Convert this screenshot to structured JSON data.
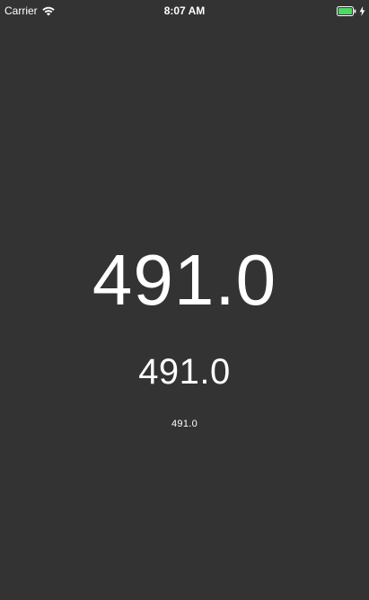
{
  "status_bar": {
    "carrier": "Carrier",
    "time": "8:07 AM",
    "wifi_icon": "wifi-icon",
    "battery_icon": "battery-icon",
    "charge_icon": "charging-bolt-icon",
    "battery_color": "#4cd964"
  },
  "display": {
    "large_value": "491.0",
    "medium_value": "491.0",
    "small_value": "491.0"
  },
  "colors": {
    "background": "#333333",
    "text": "#ffffff"
  }
}
